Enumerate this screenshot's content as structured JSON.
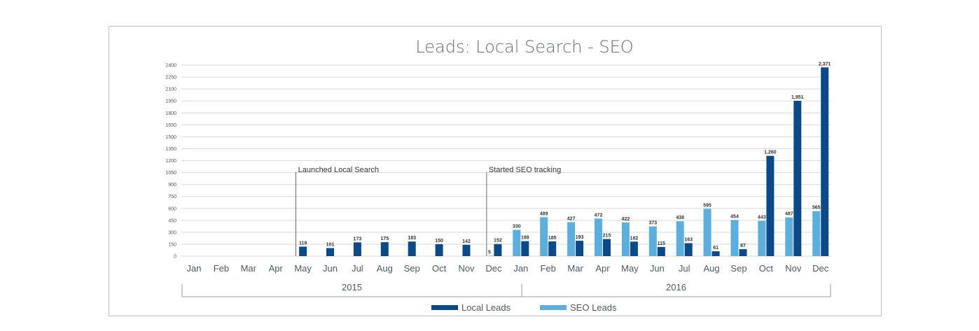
{
  "chart_data": {
    "type": "bar",
    "title": "Leads: Local Search - SEO",
    "colors": {
      "local": "#0b4a88",
      "seo": "#5aafde"
    },
    "ylim": [
      0,
      2400
    ],
    "yticks": [
      0,
      150,
      300,
      450,
      600,
      750,
      900,
      1050,
      1200,
      1350,
      1500,
      1650,
      1800,
      1950,
      2100,
      2250,
      2400
    ],
    "categories": [
      "Jan",
      "Feb",
      "Mar",
      "Apr",
      "May",
      "Jun",
      "Jul",
      "Aug",
      "Sep",
      "Oct",
      "Nov",
      "Dec",
      "Jan",
      "Feb",
      "Mar",
      "Apr",
      "May",
      "Jun",
      "Jul",
      "Aug",
      "Sep",
      "Oct",
      "Nov",
      "Dec"
    ],
    "years": [
      {
        "label": "2015",
        "start": 0,
        "end": 11
      },
      {
        "label": "2016",
        "start": 12,
        "end": 23
      }
    ],
    "series": [
      {
        "name": "Local Leads",
        "key": "local",
        "values": [
          null,
          null,
          null,
          null,
          119,
          101,
          173,
          175,
          183,
          150,
          142,
          152,
          188,
          185,
          193,
          215,
          182,
          115,
          163,
          61,
          87,
          1260,
          1951,
          2371
        ],
        "labels": [
          "",
          "",
          "",
          "",
          "119",
          "101",
          "173",
          "175",
          "183",
          "150",
          "142",
          "152",
          "188",
          "185",
          "193",
          "215",
          "182",
          "115",
          "163",
          "61",
          "87",
          "1,260",
          "1,951",
          "2,371"
        ]
      },
      {
        "name": "SEO Leads",
        "key": "seo",
        "values": [
          null,
          null,
          null,
          null,
          null,
          null,
          null,
          null,
          null,
          null,
          null,
          5,
          330,
          489,
          427,
          472,
          422,
          373,
          438,
          595,
          454,
          443,
          487,
          565
        ],
        "labels": [
          "",
          "",
          "",
          "",
          "",
          "",
          "",
          "",
          "",
          "",
          "",
          "5",
          "330",
          "489",
          "427",
          "472",
          "422",
          "373",
          "438",
          "595",
          "454",
          "443",
          "487",
          "565"
        ]
      }
    ],
    "annotations": [
      {
        "text": "Launched Local Search",
        "index": 4
      },
      {
        "text": "Started SEO tracking",
        "index": 11
      }
    ],
    "legend_position": "bottom"
  }
}
